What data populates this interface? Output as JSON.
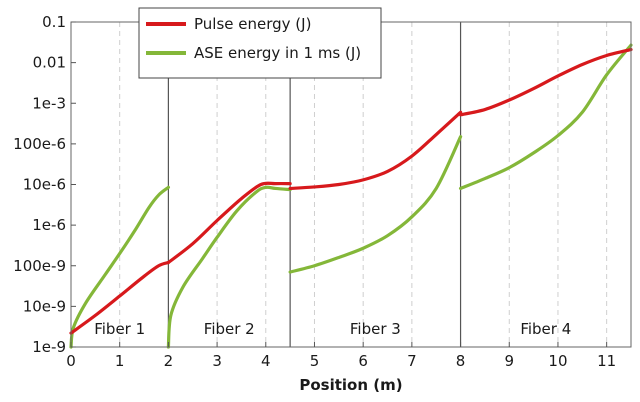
{
  "chart_data": {
    "type": "line",
    "xlabel": "Position (m)",
    "ylabel": "",
    "xlim": [
      0,
      11.5
    ],
    "ylim": [
      1e-09,
      0.1
    ],
    "yscale": "log",
    "x_ticks": [
      0,
      1,
      2,
      3,
      4,
      5,
      6,
      7,
      8,
      9,
      10,
      11
    ],
    "y_ticks": [
      {
        "value": 1e-09,
        "label": "1e-9"
      },
      {
        "value": 1e-08,
        "label": "10e-9"
      },
      {
        "value": 1e-07,
        "label": "100e-9"
      },
      {
        "value": 1e-06,
        "label": "1e-6"
      },
      {
        "value": 1e-05,
        "label": "10e-6"
      },
      {
        "value": 0.0001,
        "label": "100e-6"
      },
      {
        "value": 0.001,
        "label": "1e-3"
      },
      {
        "value": 0.01,
        "label": "0.01"
      },
      {
        "value": 0.1,
        "label": "0.1"
      }
    ],
    "grid": "x-dashed",
    "legend": {
      "position": "top-left"
    },
    "boundaries": [
      2,
      4.5,
      8
    ],
    "regions": [
      {
        "label": "Fiber 1",
        "x": 1.0
      },
      {
        "label": "Fiber 2",
        "x": 3.25
      },
      {
        "label": "Fiber 3",
        "x": 6.25
      },
      {
        "label": "Fiber 4",
        "x": 9.75
      }
    ],
    "series": [
      {
        "name": "Pulse energy (J)",
        "color": "#d7191c",
        "segments": [
          [
            [
              0,
              2.2e-09
            ],
            [
              0.5,
              6e-09
            ],
            [
              1,
              1.8e-08
            ],
            [
              1.5,
              5.5e-08
            ],
            [
              1.8,
              1e-07
            ],
            [
              2,
              1.2e-07
            ]
          ],
          [
            [
              2,
              1.2e-07
            ],
            [
              2.5,
              3.5e-07
            ],
            [
              3,
              1.3e-06
            ],
            [
              3.5,
              4.5e-06
            ],
            [
              3.9,
              1e-05
            ],
            [
              4.2,
              1.05e-05
            ],
            [
              4.5,
              1.05e-05
            ]
          ],
          [
            [
              4.5,
              8e-06
            ],
            [
              5,
              8.7e-06
            ],
            [
              5.5,
              1e-05
            ],
            [
              6,
              1.3e-05
            ],
            [
              6.5,
              2.1e-05
            ],
            [
              7,
              5e-05
            ],
            [
              7.5,
              0.00017
            ],
            [
              8,
              0.0006
            ]
          ],
          [
            [
              8,
              0.00052
            ],
            [
              8.5,
              0.0007
            ],
            [
              9,
              0.0012
            ],
            [
              9.5,
              0.0023
            ],
            [
              10,
              0.0047
            ],
            [
              10.5,
              0.009
            ],
            [
              11,
              0.015
            ],
            [
              11.5,
              0.021
            ]
          ]
        ]
      },
      {
        "name": "ASE energy in 1 ms (J)",
        "color": "#84b739",
        "segments": [
          [
            [
              0,
              1e-09
            ],
            [
              0.05,
              3e-09
            ],
            [
              0.3,
              1.2e-08
            ],
            [
              0.7,
              6e-08
            ],
            [
              1,
              2e-07
            ],
            [
              1.3,
              7e-07
            ],
            [
              1.6,
              2.7e-06
            ],
            [
              1.8,
              5.5e-06
            ],
            [
              2,
              8.5e-06
            ]
          ],
          [
            [
              2,
              1e-09
            ],
            [
              2.05,
              6e-09
            ],
            [
              2.3,
              3e-08
            ],
            [
              2.7,
              1.5e-07
            ],
            [
              3,
              5e-07
            ],
            [
              3.4,
              2.2e-06
            ],
            [
              3.8,
              6.5e-06
            ],
            [
              4,
              8.5e-06
            ],
            [
              4.2,
              8e-06
            ],
            [
              4.5,
              7.5e-06
            ]
          ],
          [
            [
              4.5,
              7e-08
            ],
            [
              5,
              1e-07
            ],
            [
              5.5,
              1.6e-07
            ],
            [
              6,
              2.7e-07
            ],
            [
              6.5,
              5.5e-07
            ],
            [
              7,
              1.6e-06
            ],
            [
              7.5,
              8e-06
            ],
            [
              8,
              0.00015
            ]
          ],
          [
            [
              8,
              8e-06
            ],
            [
              8.5,
              1.4e-05
            ],
            [
              9,
              2.6e-05
            ],
            [
              9.5,
              6e-05
            ],
            [
              10,
              0.00016
            ],
            [
              10.5,
              0.0006
            ],
            [
              11,
              0.005
            ],
            [
              11.5,
              0.027
            ]
          ]
        ]
      }
    ]
  }
}
